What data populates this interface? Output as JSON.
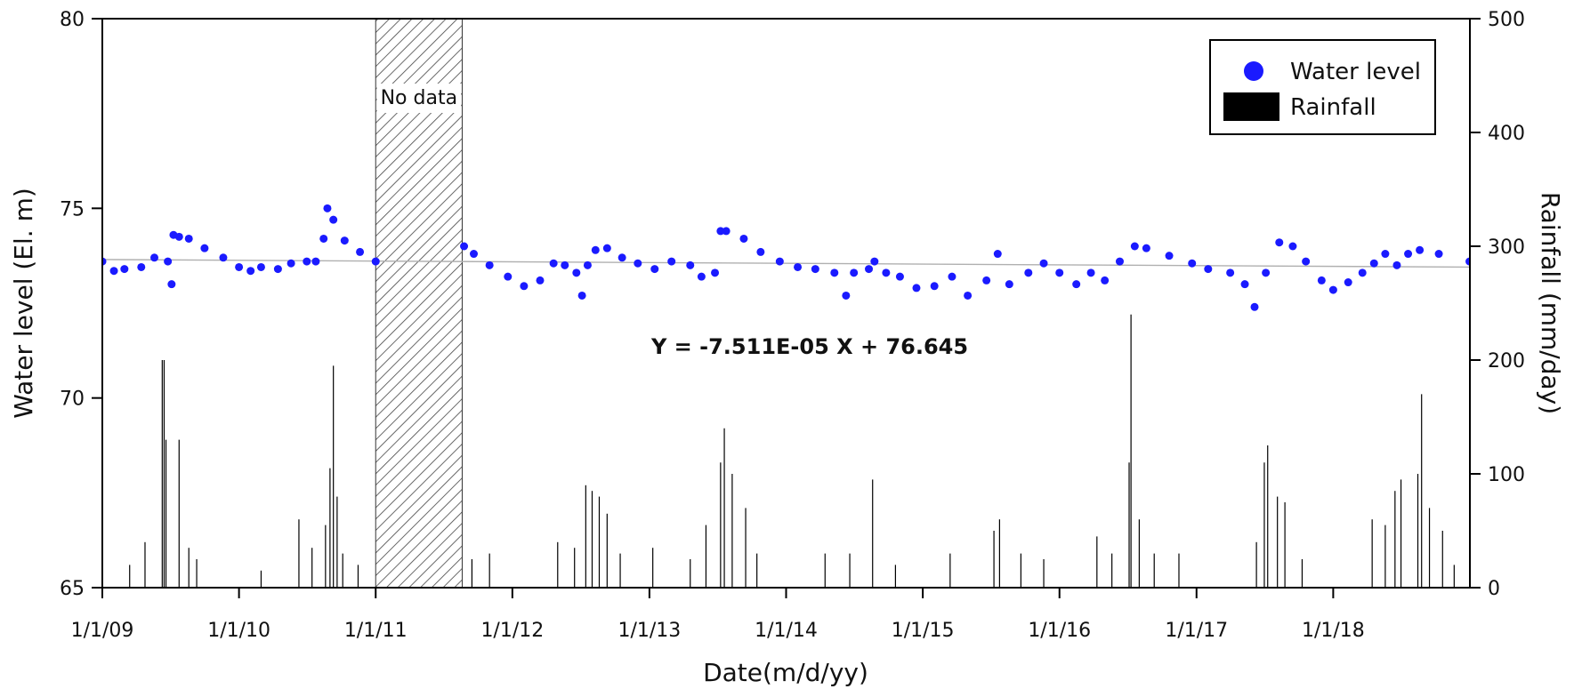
{
  "chart_data": {
    "type": "scatter",
    "xlabel": "Date(m/d/yy)",
    "ylabel": "Water level (El. m)",
    "y2label": "Rainfall (mm/day)",
    "x_ticks": [
      "1/1/09",
      "1/1/10",
      "1/1/11",
      "1/1/12",
      "1/1/13",
      "1/1/14",
      "1/1/15",
      "1/1/16",
      "1/1/17",
      "1/1/18"
    ],
    "xlim": [
      "2009-01-01",
      "2019-01-01"
    ],
    "ylim": [
      65,
      80
    ],
    "y_ticks": [
      65,
      70,
      75,
      80
    ],
    "y2lim": [
      0,
      500
    ],
    "y2_ticks": [
      0,
      100,
      200,
      300,
      400,
      500
    ],
    "legend": {
      "placement": "top-right",
      "entries": [
        "Water level",
        "Rainfall"
      ]
    },
    "annotations": {
      "no_data": "No data",
      "regression": "Y = -7.511E-05 X + 76.645"
    },
    "no_data_period": [
      "2011-01-01",
      "2011-08-20"
    ],
    "trend_line": {
      "x": [
        "2009-01-01",
        "2019-01-01"
      ],
      "y": [
        73.65,
        73.45
      ]
    },
    "colors": {
      "water_level": "#1a1aff",
      "rainfall": "#000000",
      "trend": "#b0b0b0"
    },
    "series": [
      {
        "name": "Water level",
        "points": [
          [
            "2009-01-01",
            73.6
          ],
          [
            "2009-02-01",
            73.35
          ],
          [
            "2009-03-01",
            73.4
          ],
          [
            "2009-04-15",
            73.45
          ],
          [
            "2009-05-20",
            73.7
          ],
          [
            "2009-06-25",
            73.6
          ],
          [
            "2009-07-05",
            73.0
          ],
          [
            "2009-07-10",
            74.3
          ],
          [
            "2009-07-25",
            74.25
          ],
          [
            "2009-08-20",
            74.2
          ],
          [
            "2009-10-01",
            73.95
          ],
          [
            "2009-11-20",
            73.7
          ],
          [
            "2010-01-01",
            73.45
          ],
          [
            "2010-02-01",
            73.35
          ],
          [
            "2010-03-01",
            73.45
          ],
          [
            "2010-04-15",
            73.4
          ],
          [
            "2010-05-20",
            73.55
          ],
          [
            "2010-07-01",
            73.6
          ],
          [
            "2010-07-25",
            73.6
          ],
          [
            "2010-08-15",
            74.2
          ],
          [
            "2010-08-25",
            75.0
          ],
          [
            "2010-09-10",
            74.7
          ],
          [
            "2010-10-10",
            74.15
          ],
          [
            "2010-11-20",
            73.85
          ],
          [
            "2011-01-01",
            73.6
          ],
          [
            "2011-08-25",
            74.0
          ],
          [
            "2011-09-20",
            73.8
          ],
          [
            "2011-11-01",
            73.5
          ],
          [
            "2011-12-20",
            73.2
          ],
          [
            "2012-02-01",
            72.95
          ],
          [
            "2012-03-15",
            73.1
          ],
          [
            "2012-04-20",
            73.55
          ],
          [
            "2012-05-20",
            73.5
          ],
          [
            "2012-06-20",
            73.3
          ],
          [
            "2012-07-05",
            72.7
          ],
          [
            "2012-07-20",
            73.5
          ],
          [
            "2012-08-10",
            73.9
          ],
          [
            "2012-09-10",
            73.95
          ],
          [
            "2012-10-20",
            73.7
          ],
          [
            "2012-12-01",
            73.55
          ],
          [
            "2013-01-15",
            73.4
          ],
          [
            "2013-03-01",
            73.6
          ],
          [
            "2013-04-20",
            73.5
          ],
          [
            "2013-05-20",
            73.2
          ],
          [
            "2013-06-25",
            73.3
          ],
          [
            "2013-07-10",
            74.4
          ],
          [
            "2013-07-25",
            74.4
          ],
          [
            "2013-09-10",
            74.2
          ],
          [
            "2013-10-25",
            73.85
          ],
          [
            "2013-12-15",
            73.6
          ],
          [
            "2014-02-01",
            73.45
          ],
          [
            "2014-03-20",
            73.4
          ],
          [
            "2014-05-10",
            73.3
          ],
          [
            "2014-06-10",
            72.7
          ],
          [
            "2014-07-01",
            73.3
          ],
          [
            "2014-08-10",
            73.4
          ],
          [
            "2014-08-25",
            73.6
          ],
          [
            "2014-09-25",
            73.3
          ],
          [
            "2014-11-01",
            73.2
          ],
          [
            "2014-12-15",
            72.9
          ],
          [
            "2015-02-01",
            72.95
          ],
          [
            "2015-03-20",
            73.2
          ],
          [
            "2015-05-01",
            72.7
          ],
          [
            "2015-06-20",
            73.1
          ],
          [
            "2015-07-20",
            73.8
          ],
          [
            "2015-08-20",
            73.0
          ],
          [
            "2015-10-10",
            73.3
          ],
          [
            "2015-11-20",
            73.55
          ],
          [
            "2016-01-01",
            73.3
          ],
          [
            "2016-02-15",
            73.0
          ],
          [
            "2016-03-25",
            73.3
          ],
          [
            "2016-05-01",
            73.1
          ],
          [
            "2016-06-10",
            73.6
          ],
          [
            "2016-07-20",
            74.0
          ],
          [
            "2016-08-20",
            73.95
          ],
          [
            "2016-10-20",
            73.75
          ],
          [
            "2016-12-20",
            73.55
          ],
          [
            "2017-02-01",
            73.4
          ],
          [
            "2017-04-01",
            73.3
          ],
          [
            "2017-05-10",
            73.0
          ],
          [
            "2017-06-05",
            72.4
          ],
          [
            "2017-07-05",
            73.3
          ],
          [
            "2017-08-10",
            74.1
          ],
          [
            "2017-09-15",
            74.0
          ],
          [
            "2017-10-20",
            73.6
          ],
          [
            "2017-12-01",
            73.1
          ],
          [
            "2018-01-01",
            72.85
          ],
          [
            "2018-02-10",
            73.05
          ],
          [
            "2018-03-20",
            73.3
          ],
          [
            "2018-04-20",
            73.55
          ],
          [
            "2018-05-20",
            73.8
          ],
          [
            "2018-06-20",
            73.5
          ],
          [
            "2018-07-20",
            73.8
          ],
          [
            "2018-08-20",
            73.9
          ],
          [
            "2018-10-10",
            73.8
          ],
          [
            "2018-12-31",
            73.6
          ]
        ]
      },
      {
        "name": "Rainfall",
        "points": [
          [
            "2009-06-10",
            200
          ],
          [
            "2009-06-15",
            200
          ],
          [
            "2009-06-20",
            130
          ],
          [
            "2009-07-25",
            130
          ],
          [
            "2009-08-20",
            35
          ],
          [
            "2009-04-25",
            40
          ],
          [
            "2009-09-10",
            25
          ],
          [
            "2009-03-15",
            20
          ],
          [
            "2010-03-01",
            15
          ],
          [
            "2010-06-10",
            60
          ],
          [
            "2010-07-15",
            35
          ],
          [
            "2010-08-20",
            55
          ],
          [
            "2010-09-01",
            105
          ],
          [
            "2010-09-10",
            195
          ],
          [
            "2010-09-20",
            80
          ],
          [
            "2010-10-05",
            30
          ],
          [
            "2010-11-15",
            20
          ],
          [
            "2011-09-15",
            25
          ],
          [
            "2011-11-01",
            30
          ],
          [
            "2012-05-01",
            40
          ],
          [
            "2012-06-15",
            35
          ],
          [
            "2012-07-15",
            90
          ],
          [
            "2012-08-01",
            85
          ],
          [
            "2012-08-20",
            80
          ],
          [
            "2012-09-10",
            65
          ],
          [
            "2012-10-15",
            30
          ],
          [
            "2013-01-10",
            35
          ],
          [
            "2013-04-20",
            25
          ],
          [
            "2013-06-01",
            55
          ],
          [
            "2013-07-10",
            110
          ],
          [
            "2013-07-20",
            140
          ],
          [
            "2013-08-10",
            100
          ],
          [
            "2013-09-15",
            70
          ],
          [
            "2013-10-15",
            30
          ],
          [
            "2014-04-15",
            30
          ],
          [
            "2014-06-20",
            30
          ],
          [
            "2014-08-20",
            95
          ],
          [
            "2014-10-20",
            20
          ],
          [
            "2015-03-15",
            30
          ],
          [
            "2015-07-10",
            50
          ],
          [
            "2015-07-25",
            60
          ],
          [
            "2015-09-20",
            30
          ],
          [
            "2015-11-20",
            25
          ],
          [
            "2016-04-10",
            45
          ],
          [
            "2016-05-20",
            30
          ],
          [
            "2016-07-05",
            110
          ],
          [
            "2016-07-10",
            240
          ],
          [
            "2016-08-01",
            60
          ],
          [
            "2016-09-10",
            30
          ],
          [
            "2016-11-15",
            30
          ],
          [
            "2017-07-01",
            110
          ],
          [
            "2017-07-10",
            125
          ],
          [
            "2017-08-05",
            80
          ],
          [
            "2017-08-25",
            75
          ],
          [
            "2017-06-10",
            40
          ],
          [
            "2017-10-10",
            25
          ],
          [
            "2018-04-15",
            60
          ],
          [
            "2018-05-20",
            55
          ],
          [
            "2018-06-15",
            85
          ],
          [
            "2018-07-01",
            95
          ],
          [
            "2018-08-15",
            100
          ],
          [
            "2018-08-25",
            170
          ],
          [
            "2018-09-15",
            70
          ],
          [
            "2018-10-20",
            50
          ],
          [
            "2018-11-20",
            20
          ]
        ]
      }
    ]
  }
}
